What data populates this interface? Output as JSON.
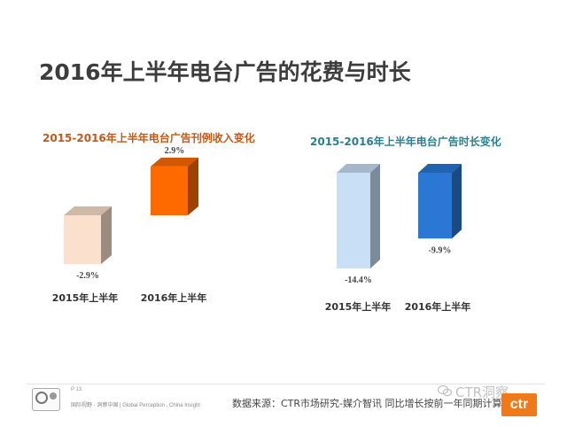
{
  "title": "2016年上半年电台广告的花费与时长",
  "footer": {
    "page": "P 13",
    "small_text": "国际视野 · 洞察中国 | Global Perception , China Insight",
    "source": "数据来源：CTR市场研究-媒介智讯  同比增长按前一年同期计算",
    "watermark": "CTR洞察",
    "watermark_icon": "wechat-icon",
    "logo_text": "ctr"
  },
  "chart_data": [
    {
      "type": "bar",
      "title": "2015-2016年上半年电台广告刊例收入变化",
      "categories": [
        "2015年上半年",
        "2016年上半年"
      ],
      "values": [
        -2.9,
        2.9
      ],
      "data_labels": [
        "-2.9%",
        "2.9%"
      ],
      "colors": [
        "#fbe0cd",
        "#ff6a00"
      ],
      "style": "3d-box",
      "grid": false,
      "legend": "none"
    },
    {
      "type": "bar",
      "title": "2015-2016年上半年电台广告时长变化",
      "categories": [
        "2015年上半年",
        "2016年上半年"
      ],
      "values": [
        -14.4,
        -9.9
      ],
      "data_labels": [
        "-14.4%",
        "-9.9%"
      ],
      "colors": [
        "#c9dff6",
        "#2a78d4"
      ],
      "style": "3d-box",
      "grid": false,
      "legend": "none"
    }
  ]
}
